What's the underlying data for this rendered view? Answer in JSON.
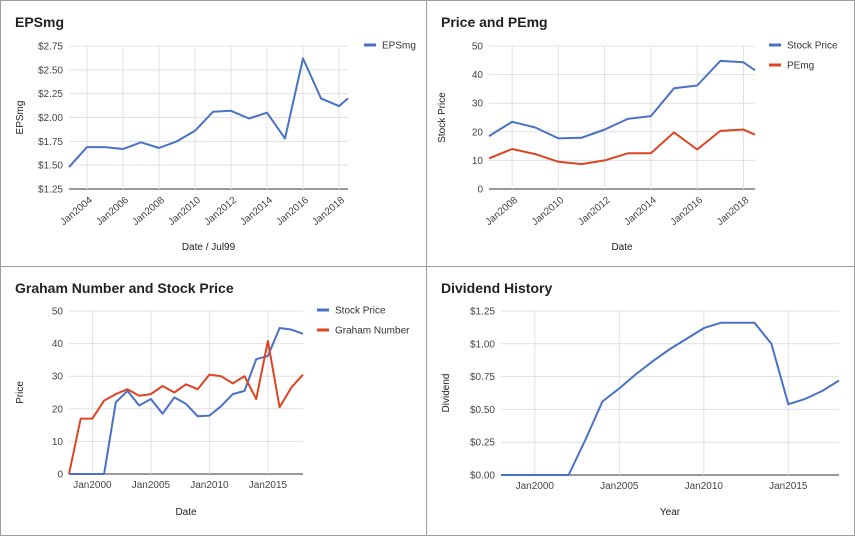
{
  "chart_data": [
    {
      "type": "line",
      "title": "EPSmg",
      "xlabel": "Date / Jul99",
      "ylabel": "EPSmg",
      "ylim": [
        1.25,
        2.75
      ],
      "yticks": [
        "$1.25",
        "$1.50",
        "$1.75",
        "$2.00",
        "$2.25",
        "$2.50",
        "$2.75"
      ],
      "xlim": [
        2003,
        2018.5
      ],
      "xticks": [
        {
          "v": 2004,
          "label": "Jan2004"
        },
        {
          "v": 2006,
          "label": "Jan2006"
        },
        {
          "v": 2008,
          "label": "Jan2008"
        },
        {
          "v": 2010,
          "label": "Jan2010"
        },
        {
          "v": 2012,
          "label": "Jan2012"
        },
        {
          "v": 2014,
          "label": "Jan2014"
        },
        {
          "v": 2016,
          "label": "Jan2016"
        },
        {
          "v": 2018,
          "label": "Jan2018"
        }
      ],
      "x_label_rotation": -40,
      "grid": true,
      "legend": "top-right",
      "series": [
        {
          "name": "EPSmg",
          "color": "#4a71c8",
          "x": [
            2003,
            2004,
            2005,
            2006,
            2007,
            2008,
            2009,
            2010,
            2011,
            2012,
            2013,
            2014,
            2015,
            2016,
            2017,
            2018,
            2018.5
          ],
          "y": [
            1.48,
            1.69,
            1.69,
            1.67,
            1.74,
            1.68,
            1.75,
            1.86,
            2.06,
            2.07,
            1.99,
            2.05,
            1.78,
            2.62,
            2.2,
            2.12,
            2.2
          ]
        }
      ]
    },
    {
      "type": "line",
      "title": "Price and PEmg",
      "xlabel": "Date",
      "ylabel": "Stock Price",
      "ylim": [
        0,
        50
      ],
      "yticks": [
        "0",
        "10",
        "20",
        "30",
        "40",
        "50"
      ],
      "xlim": [
        2007,
        2018.5
      ],
      "xticks": [
        {
          "v": 2008,
          "label": "Jan2008"
        },
        {
          "v": 2010,
          "label": "Jan2010"
        },
        {
          "v": 2012,
          "label": "Jan2012"
        },
        {
          "v": 2014,
          "label": "Jan2014"
        },
        {
          "v": 2016,
          "label": "Jan2016"
        },
        {
          "v": 2018,
          "label": "Jan2018"
        }
      ],
      "x_label_rotation": -40,
      "grid": true,
      "legend": "top-right",
      "series": [
        {
          "name": "Stock Price",
          "color": "#4a71c8",
          "x": [
            2007,
            2008,
            2009,
            2010,
            2011,
            2012,
            2013,
            2014,
            2015,
            2016,
            2017,
            2018,
            2018.5
          ],
          "y": [
            18.5,
            23.5,
            21.5,
            17.7,
            17.9,
            20.8,
            24.5,
            25.5,
            35.2,
            36.2,
            44.8,
            44.3,
            41.5
          ]
        },
        {
          "name": "PEmg",
          "color": "#dc4522",
          "x": [
            2007,
            2008,
            2009,
            2010,
            2011,
            2012,
            2013,
            2014,
            2015,
            2016,
            2017,
            2018,
            2018.5
          ],
          "y": [
            10.7,
            14.0,
            12.2,
            9.5,
            8.7,
            10.0,
            12.5,
            12.5,
            19.8,
            13.8,
            20.3,
            20.8,
            19.0
          ]
        }
      ]
    },
    {
      "type": "line",
      "title": "Graham Number and Stock Price",
      "xlabel": "Date",
      "ylabel": "Price",
      "ylim": [
        0,
        50
      ],
      "yticks": [
        "0",
        "10",
        "20",
        "30",
        "40",
        "50"
      ],
      "xlim": [
        1998,
        2018
      ],
      "xticks": [
        {
          "v": 2000,
          "label": "Jan2000"
        },
        {
          "v": 2005,
          "label": "Jan2005"
        },
        {
          "v": 2010,
          "label": "Jan2010"
        },
        {
          "v": 2015,
          "label": "Jan2015"
        }
      ],
      "x_label_rotation": 0,
      "grid": true,
      "legend": "top-right",
      "series": [
        {
          "name": "Stock Price",
          "color": "#4a71c8",
          "x": [
            1998,
            1999,
            2000,
            2001,
            2002,
            2003,
            2004,
            2005,
            2006,
            2007,
            2008,
            2009,
            2010,
            2011,
            2012,
            2013,
            2014,
            2015,
            2016,
            2017,
            2018
          ],
          "y": [
            0,
            0,
            0,
            0,
            22.0,
            25.5,
            21.0,
            23.0,
            18.5,
            23.5,
            21.5,
            17.7,
            17.9,
            20.8,
            24.5,
            25.5,
            35.2,
            36.2,
            44.8,
            44.3,
            43.0
          ]
        },
        {
          "name": "Graham Number",
          "color": "#dc4522",
          "x": [
            1998,
            1999,
            2000,
            2001,
            2002,
            2003,
            2004,
            2005,
            2006,
            2007,
            2008,
            2009,
            2010,
            2011,
            2012,
            2013,
            2014,
            2015,
            2016,
            2017,
            2018
          ],
          "y": [
            0,
            17.0,
            17.0,
            22.5,
            24.5,
            26.0,
            24.0,
            24.5,
            27.0,
            25.0,
            27.5,
            26.0,
            30.5,
            30.0,
            27.8,
            30.0,
            23.0,
            40.8,
            20.5,
            26.5,
            30.5
          ]
        }
      ]
    },
    {
      "type": "line",
      "title": "Dividend History",
      "xlabel": "Year",
      "ylabel": "Dividend",
      "ylim": [
        0,
        1.25
      ],
      "yticks": [
        "$0.00",
        "$0.25",
        "$0.50",
        "$0.75",
        "$1.00",
        "$1.25"
      ],
      "xlim": [
        1998,
        2018
      ],
      "xticks": [
        {
          "v": 2000,
          "label": "Jan2000"
        },
        {
          "v": 2005,
          "label": "Jan2005"
        },
        {
          "v": 2010,
          "label": "Jan2010"
        },
        {
          "v": 2015,
          "label": "Jan2015"
        }
      ],
      "x_label_rotation": 0,
      "grid": true,
      "legend": "none",
      "series": [
        {
          "color": "#4a71c8",
          "x": [
            1998,
            1999,
            2000,
            2001,
            2002,
            2003,
            2004,
            2005,
            2006,
            2007,
            2008,
            2009,
            2010,
            2011,
            2012,
            2013,
            2014,
            2015,
            2016,
            2017,
            2018
          ],
          "y": [
            0,
            0,
            0,
            0,
            0,
            0.27,
            0.56,
            0.66,
            0.77,
            0.87,
            0.96,
            1.04,
            1.12,
            1.16,
            1.16,
            1.16,
            1.0,
            0.54,
            0.58,
            0.64,
            0.72
          ]
        }
      ]
    }
  ]
}
